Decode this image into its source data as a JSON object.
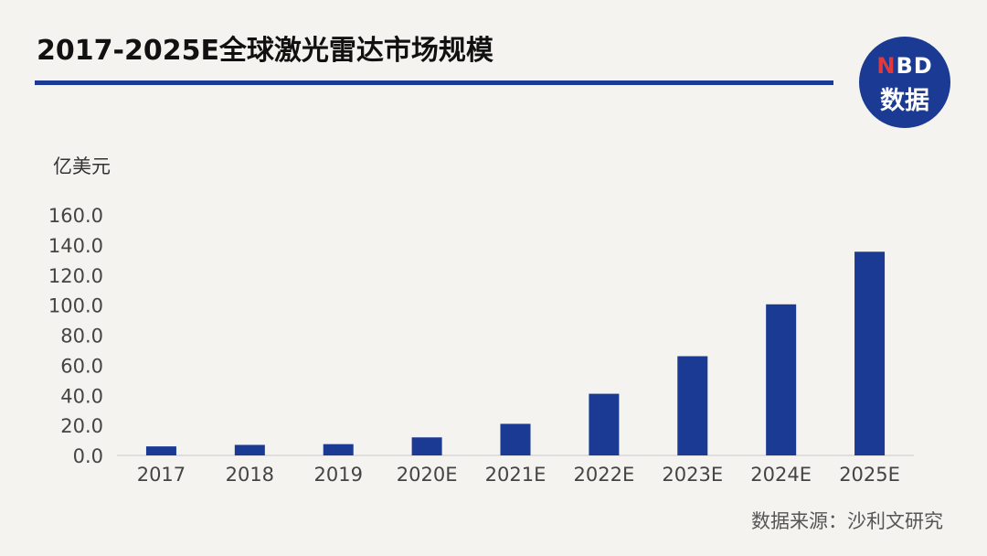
{
  "title": "2017-2025E全球激光雷达市场规模",
  "brand": {
    "line1_accent": "N",
    "line1_rest": "BD",
    "line2": "数据"
  },
  "unit": "亿美元",
  "source": "数据来源：沙利文研究",
  "colors": {
    "bar": "#1a3a94",
    "rule": "#1a3a94",
    "axis_text": "#444"
  },
  "chart_data": {
    "type": "bar",
    "title": "2017-2025E全球激光雷达市场规模",
    "xlabel": "",
    "ylabel": "亿美元",
    "categories": [
      "2017",
      "2018",
      "2019",
      "2020E",
      "2021E",
      "2022E",
      "2023E",
      "2024E",
      "2025E"
    ],
    "values": [
      6.0,
      7.0,
      7.5,
      12.0,
      21.0,
      41.0,
      66.0,
      100.5,
      135.5
    ],
    "ylim": [
      0,
      160
    ],
    "yticks": [
      "0.0",
      "20.0",
      "40.0",
      "60.0",
      "80.0",
      "100.0",
      "120.0",
      "140.0",
      "160.0"
    ],
    "grid": false,
    "legend": "none"
  }
}
